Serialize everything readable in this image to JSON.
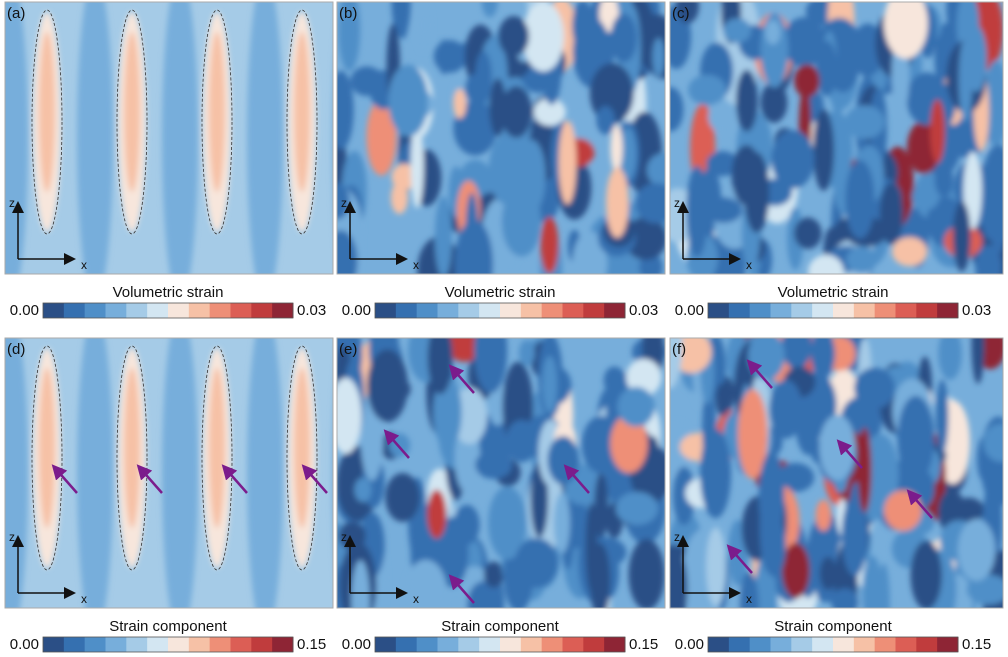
{
  "panels": [
    {
      "label": "(a)",
      "axis_z": "z",
      "axis_x": "x"
    },
    {
      "label": "(b)",
      "axis_z": "z",
      "axis_x": "x"
    },
    {
      "label": "(c)",
      "axis_z": "z",
      "axis_x": "x"
    },
    {
      "label": "(d)",
      "axis_z": "z",
      "axis_x": "x"
    },
    {
      "label": "(e)",
      "axis_z": "z",
      "axis_x": "x"
    },
    {
      "label": "(f)",
      "axis_z": "z",
      "axis_x": "x"
    }
  ],
  "colorbars": [
    {
      "title": "Volumetric strain",
      "min": "0.00",
      "max": "0.03"
    },
    {
      "title": "Volumetric strain",
      "min": "0.00",
      "max": "0.03"
    },
    {
      "title": "Volumetric strain",
      "min": "0.00",
      "max": "0.03"
    },
    {
      "title": "Strain component",
      "min": "0.00",
      "max": "0.15"
    },
    {
      "title": "Strain component",
      "min": "0.00",
      "max": "0.15"
    },
    {
      "title": "Strain component",
      "min": "0.00",
      "max": "0.15"
    }
  ],
  "colorbar_colors": [
    "#2b4f86",
    "#3570b0",
    "#4f8fc8",
    "#77aedb",
    "#a5cbe7",
    "#d3e6f2",
    "#f7e6dc",
    "#f6c1a6",
    "#ee8f77",
    "#dc5e55",
    "#c03c3d",
    "#8e2535"
  ]
}
